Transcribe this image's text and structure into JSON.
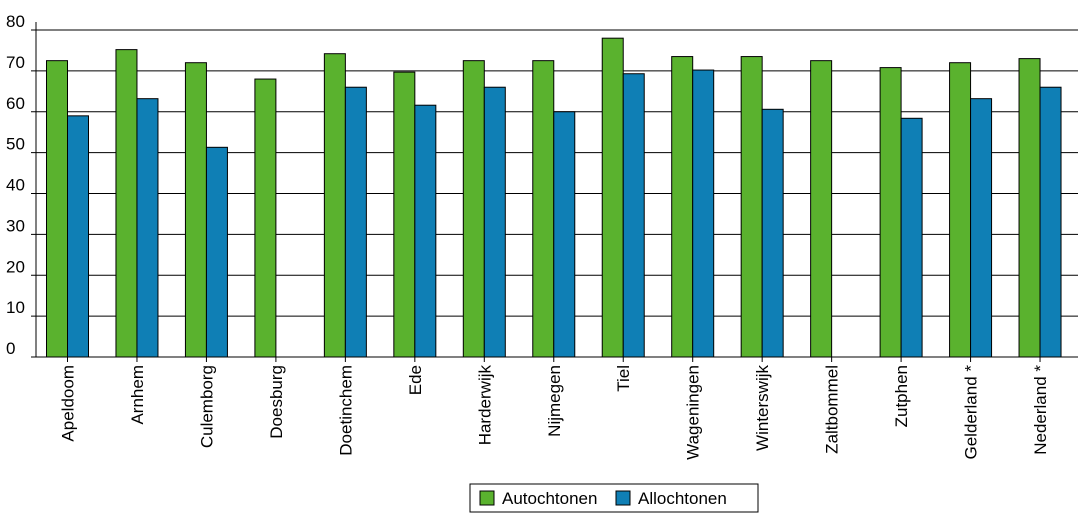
{
  "chart_data": {
    "type": "bar",
    "title": "",
    "xlabel": "",
    "ylabel": "",
    "ylim": [
      0,
      80
    ],
    "yticks": [
      0,
      10,
      20,
      30,
      40,
      50,
      60,
      70,
      80
    ],
    "grid": true,
    "legend_position": "bottom",
    "categories": [
      "Apeldoom",
      "Arnhem",
      "Culemborg",
      "Doesburg",
      "Doetinchem",
      "Ede",
      "Harderwijk",
      "Nijmegen",
      "Tiel",
      "Wageningen",
      "Winterswijk",
      "Zaltbommel",
      "Zutphen",
      "Gelderland *",
      "Nederland *"
    ],
    "series": [
      {
        "name": "Autochtonen",
        "color": "#5ab22e",
        "values": [
          72.5,
          75.2,
          72,
          68,
          74.2,
          69.7,
          72.5,
          72.5,
          78,
          73.5,
          73.5,
          72.5,
          70.8,
          72,
          73
        ]
      },
      {
        "name": "Allochtonen",
        "color": "#0f7fb5",
        "values": [
          59,
          63.2,
          51.3,
          null,
          66,
          61.6,
          66,
          60,
          69.3,
          70.2,
          60.6,
          null,
          58.4,
          63.2,
          66
        ]
      }
    ]
  }
}
